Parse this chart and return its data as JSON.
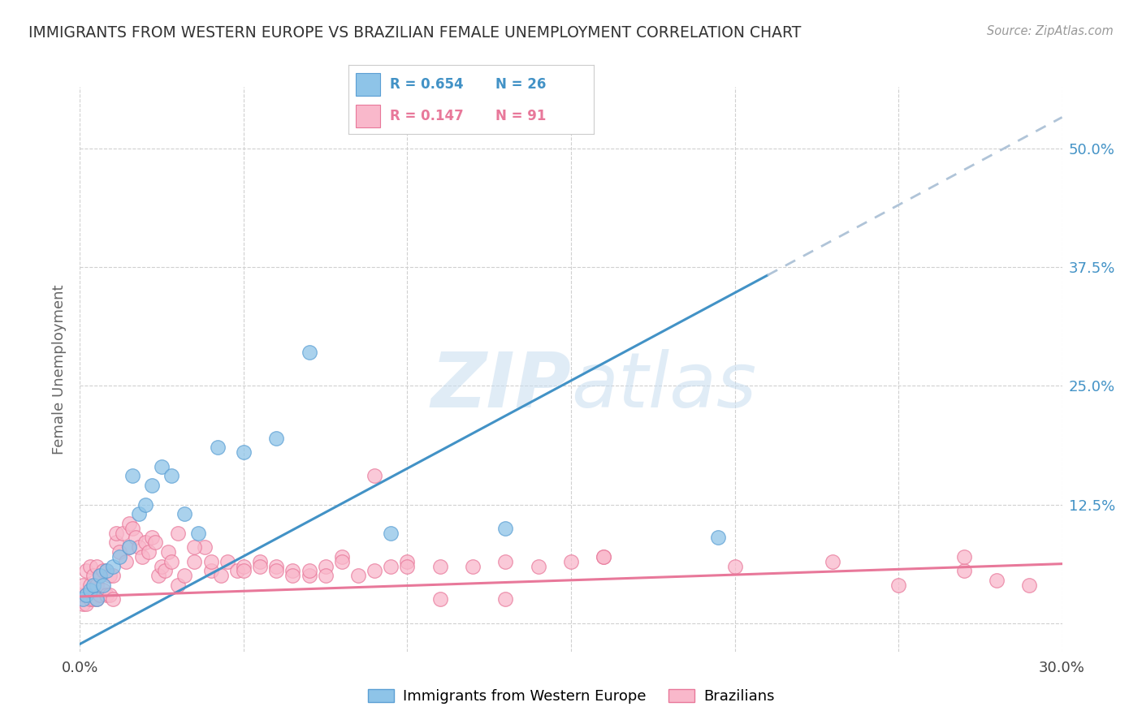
{
  "title": "IMMIGRANTS FROM WESTERN EUROPE VS BRAZILIAN FEMALE UNEMPLOYMENT CORRELATION CHART",
  "source": "Source: ZipAtlas.com",
  "ylabel": "Female Unemployment",
  "xlim": [
    0.0,
    0.3
  ],
  "ylim": [
    -0.03,
    0.565
  ],
  "xtick_positions": [
    0.0,
    0.05,
    0.1,
    0.15,
    0.2,
    0.25,
    0.3
  ],
  "xtick_labels": [
    "0.0%",
    "",
    "",
    "",
    "",
    "",
    "30.0%"
  ],
  "ytick_positions": [
    0.0,
    0.125,
    0.25,
    0.375,
    0.5
  ],
  "ytick_labels_right": [
    "",
    "12.5%",
    "25.0%",
    "37.5%",
    "50.0%"
  ],
  "legend_blue_R": "0.654",
  "legend_blue_N": "26",
  "legend_pink_R": "0.147",
  "legend_pink_N": "91",
  "legend_label_blue": "Immigrants from Western Europe",
  "legend_label_pink": "Brazilians",
  "blue_scatter_x": [
    0.001,
    0.002,
    0.003,
    0.004,
    0.005,
    0.006,
    0.007,
    0.008,
    0.01,
    0.012,
    0.015,
    0.016,
    0.018,
    0.02,
    0.022,
    0.025,
    0.028,
    0.032,
    0.036,
    0.042,
    0.05,
    0.06,
    0.07,
    0.095,
    0.13,
    0.195
  ],
  "blue_scatter_y": [
    0.025,
    0.03,
    0.035,
    0.04,
    0.025,
    0.05,
    0.04,
    0.055,
    0.06,
    0.07,
    0.08,
    0.155,
    0.115,
    0.125,
    0.145,
    0.165,
    0.155,
    0.115,
    0.095,
    0.185,
    0.18,
    0.195,
    0.285,
    0.095,
    0.1,
    0.09
  ],
  "pink_scatter_x": [
    0.001,
    0.001,
    0.001,
    0.002,
    0.002,
    0.002,
    0.003,
    0.003,
    0.003,
    0.004,
    0.004,
    0.005,
    0.005,
    0.005,
    0.006,
    0.006,
    0.007,
    0.007,
    0.008,
    0.008,
    0.009,
    0.009,
    0.01,
    0.01,
    0.011,
    0.011,
    0.012,
    0.013,
    0.014,
    0.015,
    0.015,
    0.016,
    0.017,
    0.018,
    0.019,
    0.02,
    0.021,
    0.022,
    0.023,
    0.024,
    0.025,
    0.026,
    0.027,
    0.028,
    0.03,
    0.032,
    0.035,
    0.038,
    0.04,
    0.043,
    0.045,
    0.048,
    0.05,
    0.055,
    0.06,
    0.065,
    0.07,
    0.075,
    0.08,
    0.085,
    0.09,
    0.095,
    0.1,
    0.11,
    0.12,
    0.13,
    0.14,
    0.15,
    0.16,
    0.03,
    0.035,
    0.04,
    0.05,
    0.055,
    0.06,
    0.065,
    0.07,
    0.075,
    0.08,
    0.09,
    0.1,
    0.11,
    0.13,
    0.16,
    0.2,
    0.23,
    0.25,
    0.27,
    0.27,
    0.28,
    0.29
  ],
  "pink_scatter_y": [
    0.02,
    0.03,
    0.04,
    0.02,
    0.03,
    0.055,
    0.025,
    0.04,
    0.06,
    0.025,
    0.05,
    0.025,
    0.04,
    0.06,
    0.03,
    0.05,
    0.035,
    0.055,
    0.03,
    0.055,
    0.03,
    0.05,
    0.025,
    0.05,
    0.085,
    0.095,
    0.075,
    0.095,
    0.065,
    0.08,
    0.105,
    0.1,
    0.09,
    0.08,
    0.07,
    0.085,
    0.075,
    0.09,
    0.085,
    0.05,
    0.06,
    0.055,
    0.075,
    0.065,
    0.04,
    0.05,
    0.065,
    0.08,
    0.055,
    0.05,
    0.065,
    0.055,
    0.06,
    0.065,
    0.06,
    0.055,
    0.05,
    0.06,
    0.07,
    0.05,
    0.055,
    0.06,
    0.065,
    0.06,
    0.06,
    0.065,
    0.06,
    0.065,
    0.07,
    0.095,
    0.08,
    0.065,
    0.055,
    0.06,
    0.055,
    0.05,
    0.055,
    0.05,
    0.065,
    0.155,
    0.06,
    0.025,
    0.025,
    0.07,
    0.06,
    0.065,
    0.04,
    0.055,
    0.07,
    0.045,
    0.04
  ],
  "blue_color": "#8ec4e8",
  "blue_edge_color": "#5b9fd4",
  "blue_line_color": "#4292c6",
  "pink_color": "#f9b8cb",
  "pink_edge_color": "#e8789a",
  "pink_line_color": "#e8789a",
  "dash_color": "#b0c4d8",
  "background_color": "#ffffff",
  "grid_color": "#d0d0d0",
  "blue_line_slope": 1.85,
  "blue_line_intercept": -0.022,
  "blue_line_solid_end": 0.21,
  "blue_line_dash_end": 0.3,
  "pink_line_slope": 0.115,
  "pink_line_intercept": 0.028
}
